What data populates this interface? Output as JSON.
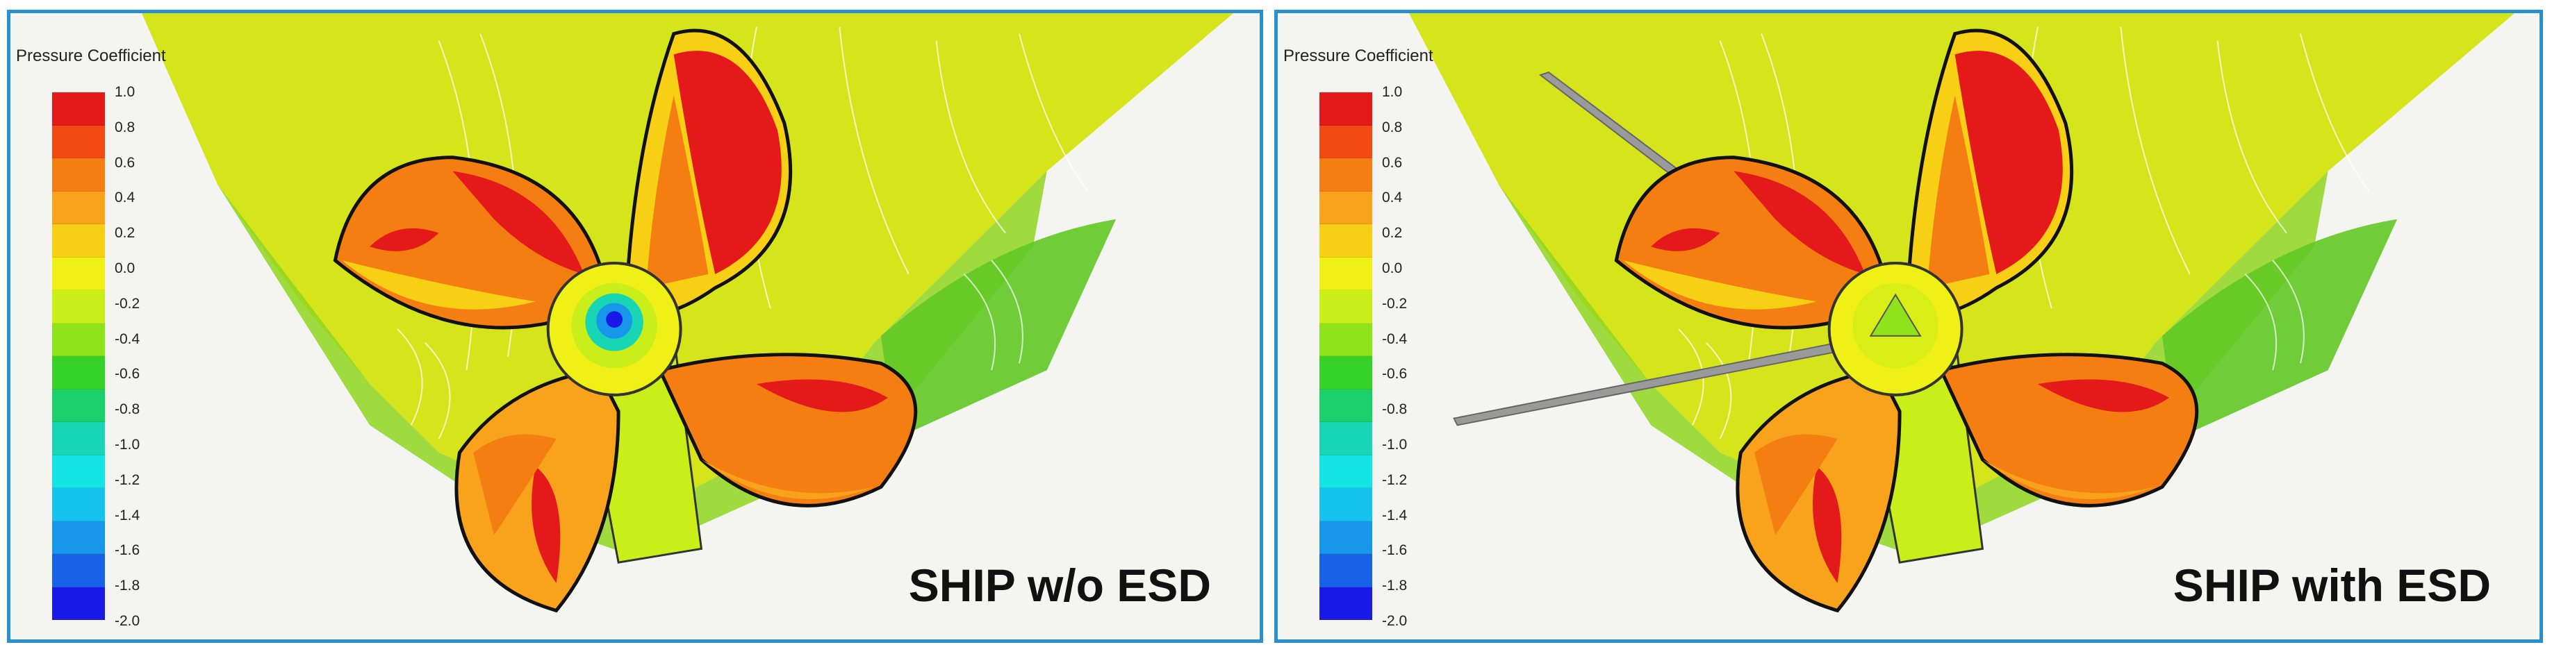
{
  "panels": [
    {
      "id": "left",
      "legend_title": "Pressure Coefficient",
      "caption": "SHIP w/o ESD",
      "hub_center": "blue-low-pressure",
      "esd_stator": false
    },
    {
      "id": "right",
      "legend_title": "Pressure Coefficient",
      "caption": "SHIP with ESD",
      "hub_center": "green-moderate-pressure",
      "esd_stator": true
    }
  ],
  "legend": {
    "labels": [
      "1.0",
      "0.8",
      "0.6",
      "0.4",
      "0.2",
      "0.0",
      "-0.2",
      "-0.4",
      "-0.6",
      "-0.8",
      "-1.0",
      "-1.2",
      "-1.4",
      "-1.6",
      "-1.8",
      "-2.0"
    ],
    "colors": [
      "#e41a1a",
      "#f24a12",
      "#f57e12",
      "#f9a21b",
      "#f7cf15",
      "#eef016",
      "#c9ee1a",
      "#8fe31a",
      "#37d229",
      "#1bcf6c",
      "#18d6b4",
      "#14e4e4",
      "#16c3ee",
      "#1796ea",
      "#1762e6",
      "#1a1ae8"
    ]
  },
  "colors": {
    "frame": "#2a8fd0",
    "hull": "#d6e41c",
    "blade_high": "#e41a1a",
    "blade_mid": "#f57e12",
    "blade_yellow": "#f7cf15",
    "hub_low": "#1a52e6",
    "esd_fin": "#9a9a9a"
  }
}
